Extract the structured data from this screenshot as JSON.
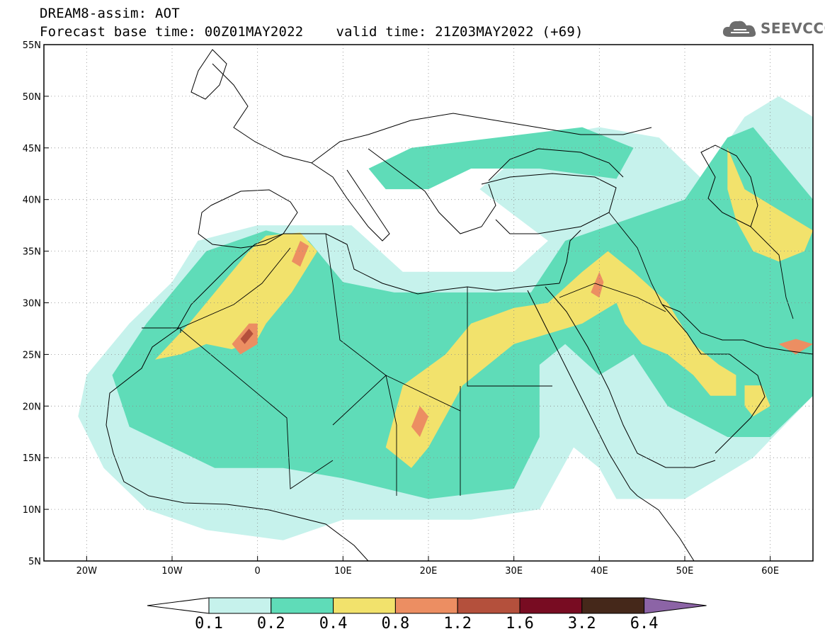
{
  "title": {
    "line1": "DREAM8-assim: AOT",
    "base_time": "Forecast base time: 00Z01MAY2022",
    "valid_time": "valid time: 21Z03MAY2022 (+69)"
  },
  "logo": {
    "text": "SEEVCCC",
    "icon": "cloud-icon",
    "color": "#6d6d6d"
  },
  "map_data": {
    "type": "map",
    "lon_range": [
      -25,
      65
    ],
    "lat_range": [
      5,
      55
    ],
    "lat_ticks": [
      {
        "value": 55,
        "label": "55N"
      },
      {
        "value": 50,
        "label": "50N"
      },
      {
        "value": 45,
        "label": "45N"
      },
      {
        "value": 40,
        "label": "40N"
      },
      {
        "value": 35,
        "label": "35N"
      },
      {
        "value": 30,
        "label": "30N"
      },
      {
        "value": 25,
        "label": "25N"
      },
      {
        "value": 20,
        "label": "20N"
      },
      {
        "value": 15,
        "label": "15N"
      },
      {
        "value": 10,
        "label": "10N"
      },
      {
        "value": 5,
        "label": "5N"
      }
    ],
    "lon_ticks": [
      {
        "value": -20,
        "label": "20W"
      },
      {
        "value": -10,
        "label": "10W"
      },
      {
        "value": 0,
        "label": "0"
      },
      {
        "value": 10,
        "label": "10E"
      },
      {
        "value": 20,
        "label": "20E"
      },
      {
        "value": 30,
        "label": "30E"
      },
      {
        "value": 40,
        "label": "40E"
      },
      {
        "value": 50,
        "label": "50E"
      },
      {
        "value": 60,
        "label": "60E"
      }
    ],
    "gridlines": "dotted",
    "levels": [
      {
        "min": 0.1,
        "max": 0.2,
        "color": "#c6f2ec"
      },
      {
        "min": 0.2,
        "max": 0.4,
        "color": "#5fdcb8"
      },
      {
        "min": 0.4,
        "max": 0.8,
        "color": "#f2e26c"
      },
      {
        "min": 0.8,
        "max": 1.2,
        "color": "#ec8e62"
      },
      {
        "min": 1.2,
        "max": 1.6,
        "color": "#b4503c"
      },
      {
        "min": 1.6,
        "max": 3.2,
        "color": "#780c22"
      },
      {
        "min": 3.2,
        "max": 6.4,
        "color": "#45281a"
      }
    ],
    "regions": [
      {
        "level": 0.1,
        "points": [
          [
            -21,
            19
          ],
          [
            -20,
            23
          ],
          [
            -15,
            28
          ],
          [
            -10,
            32
          ],
          [
            -7,
            36
          ],
          [
            0,
            37.5
          ],
          [
            11,
            37.5
          ],
          [
            17,
            33
          ],
          [
            24,
            33
          ],
          [
            30,
            33
          ],
          [
            34,
            36
          ],
          [
            26,
            41
          ],
          [
            33,
            46
          ],
          [
            40,
            47
          ],
          [
            47,
            46
          ],
          [
            52,
            42
          ],
          [
            57,
            48
          ],
          [
            61,
            50
          ],
          [
            65,
            48
          ],
          [
            65,
            21
          ],
          [
            58,
            15
          ],
          [
            50,
            11
          ],
          [
            42,
            11
          ],
          [
            40,
            14
          ],
          [
            37,
            16
          ],
          [
            33,
            10
          ],
          [
            25,
            9
          ],
          [
            10,
            9
          ],
          [
            3,
            7
          ],
          [
            -6,
            8
          ],
          [
            -13,
            10
          ],
          [
            -18,
            14
          ]
        ]
      },
      {
        "level": 0.2,
        "points": [
          [
            -17,
            23
          ],
          [
            -13,
            28
          ],
          [
            -9,
            32
          ],
          [
            -6,
            35
          ],
          [
            1,
            37
          ],
          [
            6,
            36
          ],
          [
            10,
            32
          ],
          [
            16,
            31
          ],
          [
            24,
            31
          ],
          [
            32,
            31
          ],
          [
            36,
            36
          ],
          [
            43,
            38
          ],
          [
            50,
            40
          ],
          [
            55,
            46
          ],
          [
            58,
            47
          ],
          [
            61,
            44
          ],
          [
            65,
            40
          ],
          [
            65,
            21
          ],
          [
            60,
            17
          ],
          [
            55,
            17
          ],
          [
            48,
            20
          ],
          [
            44,
            25
          ],
          [
            40,
            23
          ],
          [
            36,
            26
          ],
          [
            33,
            24
          ],
          [
            33,
            17
          ],
          [
            30,
            12
          ],
          [
            20,
            11
          ],
          [
            10,
            13
          ],
          [
            3,
            14
          ],
          [
            -5,
            14
          ],
          [
            -10,
            16
          ],
          [
            -15,
            18
          ]
        ]
      },
      {
        "level": 0.2,
        "points": [
          [
            13,
            43
          ],
          [
            18,
            45
          ],
          [
            28,
            46
          ],
          [
            38,
            47
          ],
          [
            44,
            45
          ],
          [
            42,
            42
          ],
          [
            33,
            43
          ],
          [
            25,
            43
          ],
          [
            20,
            41
          ],
          [
            15,
            41
          ]
        ]
      },
      {
        "level": 0.4,
        "points": [
          [
            -12,
            24.5
          ],
          [
            -8,
            28
          ],
          [
            -4,
            32
          ],
          [
            -1,
            35
          ],
          [
            1,
            36.5
          ],
          [
            5,
            36.8
          ],
          [
            7,
            35
          ],
          [
            4,
            31
          ],
          [
            1,
            28
          ],
          [
            0,
            26.5
          ],
          [
            -3,
            25.5
          ],
          [
            -6,
            26
          ],
          [
            -9,
            25
          ]
        ]
      },
      {
        "level": 0.4,
        "points": [
          [
            15,
            16
          ],
          [
            17,
            22
          ],
          [
            22,
            25
          ],
          [
            25,
            28
          ],
          [
            30,
            29.5
          ],
          [
            34,
            30
          ],
          [
            38,
            33
          ],
          [
            41,
            35
          ],
          [
            44,
            33
          ],
          [
            48,
            30
          ],
          [
            51,
            26
          ],
          [
            54,
            24
          ],
          [
            56,
            23
          ],
          [
            56,
            21
          ],
          [
            53,
            21
          ],
          [
            51,
            23
          ],
          [
            48,
            25
          ],
          [
            45,
            26
          ],
          [
            43,
            28
          ],
          [
            42,
            30
          ],
          [
            38,
            28
          ],
          [
            34,
            27
          ],
          [
            30,
            26
          ],
          [
            27,
            24
          ],
          [
            24,
            22
          ],
          [
            20,
            16
          ],
          [
            18,
            14
          ]
        ]
      },
      {
        "level": 0.4,
        "points": [
          [
            55,
            45
          ],
          [
            56,
            43
          ],
          [
            57,
            41
          ],
          [
            59,
            40
          ],
          [
            63,
            38
          ],
          [
            65,
            37
          ],
          [
            64,
            35
          ],
          [
            61,
            34
          ],
          [
            58,
            35
          ],
          [
            56,
            38
          ],
          [
            55,
            41
          ]
        ]
      },
      {
        "level": 0.4,
        "points": [
          [
            57,
            22
          ],
          [
            59,
            22
          ],
          [
            60,
            20
          ],
          [
            58,
            19
          ],
          [
            57,
            20
          ]
        ]
      },
      {
        "level": 0.8,
        "points": [
          [
            -3,
            26
          ],
          [
            -1,
            28
          ],
          [
            0,
            28
          ],
          [
            0,
            26
          ],
          [
            -2,
            25
          ]
        ]
      },
      {
        "level": 0.8,
        "points": [
          [
            4,
            34
          ],
          [
            5,
            36
          ],
          [
            6,
            35.5
          ],
          [
            5,
            33.5
          ]
        ]
      },
      {
        "level": 0.8,
        "points": [
          [
            39,
            31
          ],
          [
            40,
            33
          ],
          [
            40.5,
            32
          ],
          [
            40,
            30.5
          ]
        ]
      },
      {
        "level": 0.8,
        "points": [
          [
            18,
            18
          ],
          [
            19,
            20
          ],
          [
            20,
            19
          ],
          [
            19,
            17
          ]
        ]
      },
      {
        "level": 0.8,
        "points": [
          [
            61,
            26
          ],
          [
            63,
            26.5
          ],
          [
            65,
            26
          ],
          [
            63,
            25
          ]
        ]
      },
      {
        "level": 1.2,
        "points": [
          [
            -2,
            26.5
          ],
          [
            -1,
            27.5
          ],
          [
            -0.5,
            27
          ],
          [
            -1.5,
            26
          ]
        ]
      }
    ],
    "colorbar": {
      "labels": [
        "0.1",
        "0.2",
        "0.4",
        "0.8",
        "1.2",
        "1.6",
        "3.2",
        "6.4"
      ],
      "under_color": "#ffffff",
      "over_color": "#8c64a6"
    }
  }
}
